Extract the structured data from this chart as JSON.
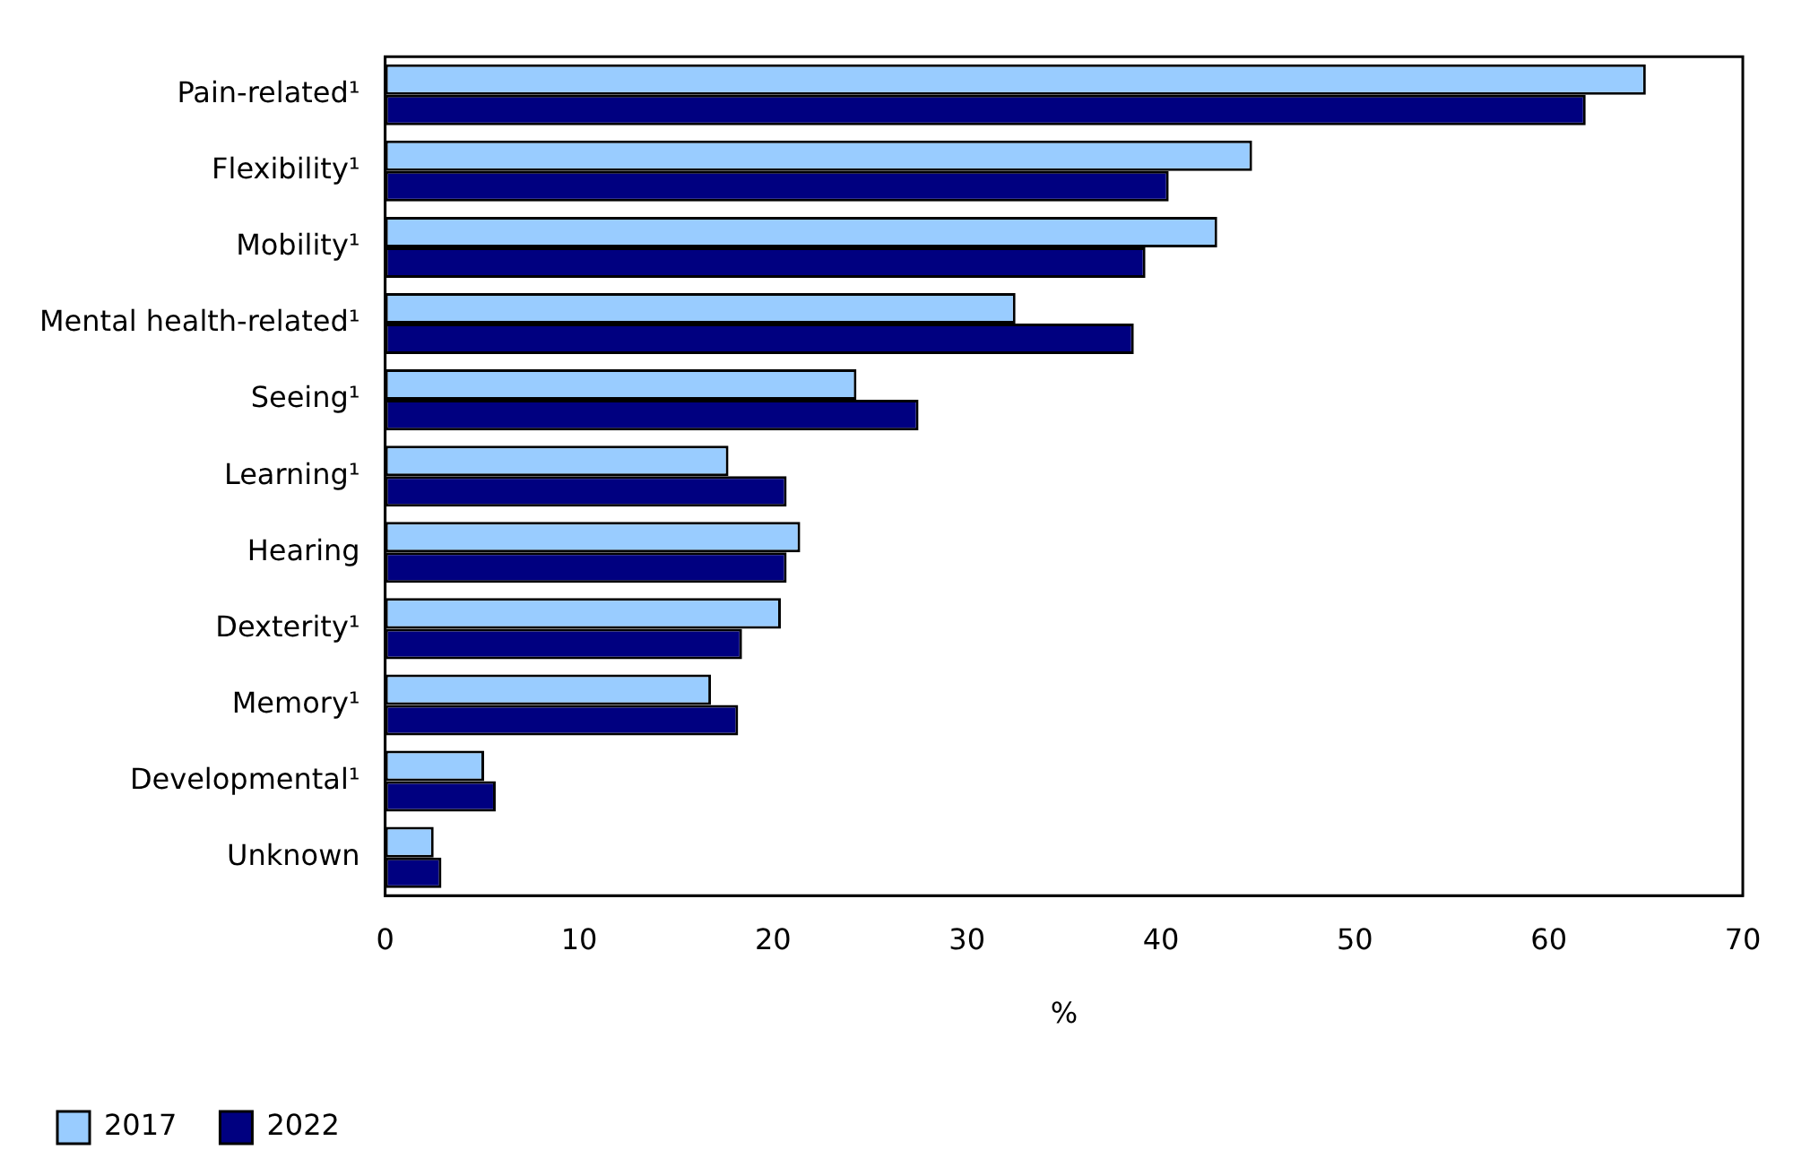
{
  "chart_data": {
    "type": "bar",
    "orientation": "horizontal",
    "categories": [
      "Pain-related¹",
      "Flexibility¹",
      "Mobility¹",
      "Mental health-related¹",
      "Seeing¹",
      "Learning¹",
      "Hearing",
      "Dexterity¹",
      "Memory¹",
      "Developmental¹",
      "Unknown"
    ],
    "series": [
      {
        "name": "2017",
        "color": "#99ccff",
        "values": [
          65.0,
          44.7,
          42.9,
          32.5,
          24.3,
          17.7,
          21.4,
          20.4,
          16.8,
          5.1,
          2.5
        ]
      },
      {
        "name": "2022",
        "color": "#000080",
        "values": [
          61.9,
          40.4,
          39.2,
          38.6,
          27.5,
          20.7,
          20.7,
          18.4,
          18.2,
          5.7,
          2.9
        ]
      }
    ],
    "xlabel": "%",
    "xlim": [
      0,
      70
    ],
    "xticks": [
      0,
      10,
      20,
      30,
      40,
      50,
      60,
      70
    ],
    "grid": false,
    "legend": "bottom left"
  }
}
